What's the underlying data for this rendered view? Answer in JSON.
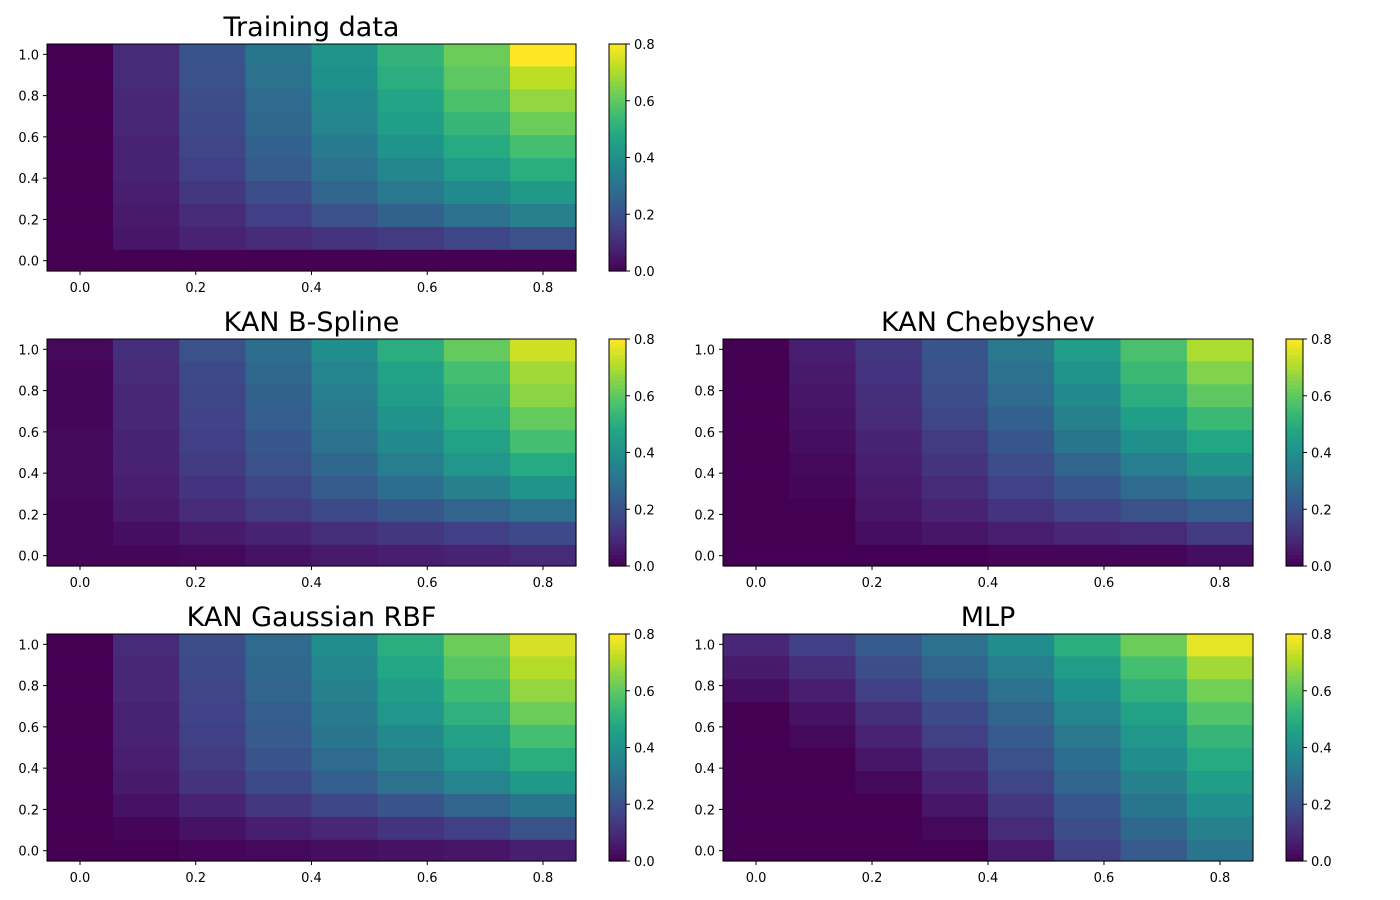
{
  "figure": {
    "title": ""
  },
  "chart_data": [
    {
      "type": "heatmap",
      "title": "Training data",
      "x_ticks": [
        "0.0",
        "0.2",
        "0.4",
        "0.6",
        "0.8"
      ],
      "y_ticks": [
        "0.0",
        "0.2",
        "0.4",
        "0.6",
        "0.8",
        "1.0"
      ],
      "x_tick_values": [
        0.0,
        0.2,
        0.4,
        0.6,
        0.8
      ],
      "y_tick_values": [
        0.0,
        0.2,
        0.4,
        0.6,
        0.8,
        1.0
      ],
      "xlim": [
        -0.057,
        0.857
      ],
      "ylim": [
        -0.05,
        1.05
      ],
      "x_centers": [
        0.0,
        0.114,
        0.229,
        0.343,
        0.457,
        0.571,
        0.686,
        0.8
      ],
      "y_centers": [
        0.0,
        0.111,
        0.222,
        0.333,
        0.444,
        0.556,
        0.667,
        0.778,
        0.889,
        1.0
      ],
      "values": [
        [
          0.0,
          0.0,
          0.0,
          0.0,
          0.0,
          0.0,
          0.0,
          0.0
        ],
        [
          0.0,
          0.05,
          0.08,
          0.1,
          0.12,
          0.14,
          0.17,
          0.2
        ],
        [
          0.0,
          0.06,
          0.1,
          0.15,
          0.2,
          0.25,
          0.3,
          0.35
        ],
        [
          0.0,
          0.07,
          0.13,
          0.19,
          0.26,
          0.32,
          0.38,
          0.43
        ],
        [
          0.0,
          0.08,
          0.15,
          0.23,
          0.3,
          0.37,
          0.44,
          0.5
        ],
        [
          0.0,
          0.08,
          0.17,
          0.25,
          0.33,
          0.41,
          0.49,
          0.56
        ],
        [
          0.0,
          0.09,
          0.18,
          0.27,
          0.36,
          0.45,
          0.53,
          0.62
        ],
        [
          0.0,
          0.09,
          0.19,
          0.28,
          0.38,
          0.47,
          0.57,
          0.67
        ],
        [
          0.0,
          0.1,
          0.2,
          0.3,
          0.4,
          0.5,
          0.6,
          0.72
        ],
        [
          0.0,
          0.1,
          0.21,
          0.31,
          0.41,
          0.52,
          0.62,
          0.8
        ]
      ],
      "colorbar": {
        "min": 0.0,
        "max": 0.8,
        "ticks": [
          "0.0",
          "0.2",
          "0.4",
          "0.6",
          "0.8"
        ]
      }
    },
    {
      "type": "heatmap",
      "title": "KAN B-Spline",
      "x_ticks": [
        "0.0",
        "0.2",
        "0.4",
        "0.6",
        "0.8"
      ],
      "y_ticks": [
        "0.0",
        "0.2",
        "0.4",
        "0.6",
        "0.8",
        "1.0"
      ],
      "x_tick_values": [
        0.0,
        0.2,
        0.4,
        0.6,
        0.8
      ],
      "y_tick_values": [
        0.0,
        0.2,
        0.4,
        0.6,
        0.8,
        1.0
      ],
      "xlim": [
        -0.057,
        0.857
      ],
      "ylim": [
        -0.05,
        1.05
      ],
      "x_centers": [
        0.0,
        0.114,
        0.229,
        0.343,
        0.457,
        0.571,
        0.686,
        0.8
      ],
      "y_centers": [
        0.0,
        0.111,
        0.222,
        0.333,
        0.444,
        0.556,
        0.667,
        0.778,
        0.889,
        1.0
      ],
      "values": [
        [
          0.01,
          0.01,
          0.02,
          0.04,
          0.06,
          0.07,
          0.08,
          0.1
        ],
        [
          0.01,
          0.03,
          0.06,
          0.08,
          0.11,
          0.13,
          0.15,
          0.18
        ],
        [
          0.01,
          0.06,
          0.1,
          0.14,
          0.18,
          0.22,
          0.26,
          0.3
        ],
        [
          0.02,
          0.07,
          0.12,
          0.17,
          0.23,
          0.29,
          0.35,
          0.41
        ],
        [
          0.02,
          0.08,
          0.14,
          0.2,
          0.27,
          0.34,
          0.42,
          0.49
        ],
        [
          0.02,
          0.08,
          0.15,
          0.22,
          0.3,
          0.38,
          0.46,
          0.56
        ],
        [
          0.01,
          0.09,
          0.16,
          0.24,
          0.32,
          0.41,
          0.5,
          0.61
        ],
        [
          0.01,
          0.09,
          0.17,
          0.25,
          0.34,
          0.44,
          0.53,
          0.66
        ],
        [
          0.01,
          0.1,
          0.18,
          0.27,
          0.36,
          0.46,
          0.56,
          0.69
        ],
        [
          0.02,
          0.11,
          0.2,
          0.29,
          0.39,
          0.5,
          0.61,
          0.74
        ]
      ],
      "colorbar": {
        "min": 0.0,
        "max": 0.8,
        "ticks": [
          "0.0",
          "0.2",
          "0.4",
          "0.6",
          "0.8"
        ]
      }
    },
    {
      "type": "heatmap",
      "title": "KAN Chebyshev",
      "x_ticks": [
        "0.0",
        "0.2",
        "0.4",
        "0.6",
        "0.8"
      ],
      "y_ticks": [
        "0.0",
        "0.2",
        "0.4",
        "0.6",
        "0.8",
        "1.0"
      ],
      "x_tick_values": [
        0.0,
        0.2,
        0.4,
        0.6,
        0.8
      ],
      "y_tick_values": [
        0.0,
        0.2,
        0.4,
        0.6,
        0.8,
        1.0
      ],
      "xlim": [
        -0.057,
        0.857
      ],
      "ylim": [
        -0.05,
        1.05
      ],
      "x_centers": [
        0.0,
        0.114,
        0.229,
        0.343,
        0.457,
        0.571,
        0.686,
        0.8
      ],
      "y_centers": [
        0.0,
        0.111,
        0.222,
        0.333,
        0.444,
        0.556,
        0.667,
        0.778,
        0.889,
        1.0
      ],
      "values": [
        [
          0.0,
          0.0,
          0.0,
          0.0,
          0.01,
          0.01,
          0.01,
          0.03
        ],
        [
          0.0,
          0.0,
          0.03,
          0.05,
          0.07,
          0.09,
          0.1,
          0.14
        ],
        [
          0.0,
          0.0,
          0.05,
          0.08,
          0.12,
          0.16,
          0.2,
          0.24
        ],
        [
          0.0,
          0.01,
          0.06,
          0.1,
          0.16,
          0.22,
          0.28,
          0.33
        ],
        [
          0.0,
          0.02,
          0.07,
          0.12,
          0.19,
          0.26,
          0.34,
          0.41
        ],
        [
          0.0,
          0.03,
          0.08,
          0.14,
          0.22,
          0.31,
          0.4,
          0.48
        ],
        [
          0.0,
          0.04,
          0.1,
          0.17,
          0.25,
          0.35,
          0.45,
          0.54
        ],
        [
          0.0,
          0.05,
          0.11,
          0.19,
          0.28,
          0.38,
          0.5,
          0.6
        ],
        [
          0.0,
          0.06,
          0.12,
          0.2,
          0.3,
          0.41,
          0.54,
          0.65
        ],
        [
          0.0,
          0.07,
          0.13,
          0.21,
          0.32,
          0.44,
          0.57,
          0.7
        ]
      ],
      "colorbar": {
        "min": 0.0,
        "max": 0.8,
        "ticks": [
          "0.0",
          "0.2",
          "0.4",
          "0.6",
          "0.8"
        ]
      }
    },
    {
      "type": "heatmap",
      "title": "KAN Gaussian RBF",
      "x_ticks": [
        "0.0",
        "0.2",
        "0.4",
        "0.6",
        "0.8"
      ],
      "y_ticks": [
        "0.0",
        "0.2",
        "0.4",
        "0.6",
        "0.8",
        "1.0"
      ],
      "x_tick_values": [
        0.0,
        0.2,
        0.4,
        0.6,
        0.8
      ],
      "y_tick_values": [
        0.0,
        0.2,
        0.4,
        0.6,
        0.8,
        1.0
      ],
      "xlim": [
        -0.057,
        0.857
      ],
      "ylim": [
        -0.05,
        1.05
      ],
      "x_centers": [
        0.0,
        0.114,
        0.229,
        0.343,
        0.457,
        0.571,
        0.686,
        0.8
      ],
      "y_centers": [
        0.0,
        0.111,
        0.222,
        0.333,
        0.444,
        0.556,
        0.667,
        0.778,
        0.889,
        1.0
      ],
      "values": [
        [
          0.0,
          0.0,
          0.01,
          0.02,
          0.03,
          0.04,
          0.05,
          0.07
        ],
        [
          0.0,
          0.01,
          0.04,
          0.07,
          0.09,
          0.12,
          0.15,
          0.2
        ],
        [
          0.0,
          0.04,
          0.08,
          0.13,
          0.17,
          0.21,
          0.26,
          0.31
        ],
        [
          0.0,
          0.06,
          0.12,
          0.18,
          0.24,
          0.3,
          0.36,
          0.43
        ],
        [
          0.0,
          0.07,
          0.14,
          0.21,
          0.28,
          0.35,
          0.42,
          0.5
        ],
        [
          0.0,
          0.08,
          0.15,
          0.23,
          0.31,
          0.38,
          0.46,
          0.56
        ],
        [
          0.0,
          0.08,
          0.16,
          0.24,
          0.33,
          0.42,
          0.51,
          0.62
        ],
        [
          0.0,
          0.09,
          0.17,
          0.26,
          0.35,
          0.45,
          0.55,
          0.67
        ],
        [
          0.0,
          0.09,
          0.18,
          0.27,
          0.37,
          0.48,
          0.59,
          0.71
        ],
        [
          0.0,
          0.1,
          0.19,
          0.28,
          0.39,
          0.5,
          0.62,
          0.75
        ]
      ],
      "colorbar": {
        "min": 0.0,
        "max": 0.8,
        "ticks": [
          "0.0",
          "0.2",
          "0.4",
          "0.6",
          "0.8"
        ]
      }
    },
    {
      "type": "heatmap",
      "title": "MLP",
      "x_ticks": [
        "0.0",
        "0.2",
        "0.4",
        "0.6",
        "0.8"
      ],
      "y_ticks": [
        "0.0",
        "0.2",
        "0.4",
        "0.6",
        "0.8",
        "1.0"
      ],
      "x_tick_values": [
        0.0,
        0.2,
        0.4,
        0.6,
        0.8
      ],
      "y_tick_values": [
        0.0,
        0.2,
        0.4,
        0.6,
        0.8,
        1.0
      ],
      "xlim": [
        -0.057,
        0.857
      ],
      "ylim": [
        -0.05,
        1.05
      ],
      "x_centers": [
        0.0,
        0.114,
        0.229,
        0.343,
        0.457,
        0.571,
        0.686,
        0.8
      ],
      "y_centers": [
        0.0,
        0.111,
        0.222,
        0.333,
        0.444,
        0.556,
        0.667,
        0.778,
        0.889,
        1.0
      ],
      "values": [
        [
          0.0,
          0.0,
          0.0,
          0.0,
          0.06,
          0.15,
          0.23,
          0.31
        ],
        [
          0.0,
          0.0,
          0.0,
          0.02,
          0.1,
          0.19,
          0.27,
          0.35
        ],
        [
          0.0,
          0.0,
          0.0,
          0.05,
          0.13,
          0.22,
          0.31,
          0.4
        ],
        [
          0.0,
          0.0,
          0.02,
          0.08,
          0.17,
          0.26,
          0.35,
          0.45
        ],
        [
          0.0,
          0.0,
          0.05,
          0.11,
          0.2,
          0.29,
          0.39,
          0.49
        ],
        [
          0.0,
          0.02,
          0.08,
          0.15,
          0.23,
          0.32,
          0.42,
          0.53
        ],
        [
          0.0,
          0.04,
          0.11,
          0.18,
          0.26,
          0.36,
          0.46,
          0.58
        ],
        [
          0.03,
          0.07,
          0.15,
          0.22,
          0.3,
          0.4,
          0.51,
          0.63
        ],
        [
          0.06,
          0.11,
          0.19,
          0.26,
          0.34,
          0.44,
          0.56,
          0.69
        ],
        [
          0.09,
          0.15,
          0.23,
          0.3,
          0.39,
          0.5,
          0.62,
          0.77
        ]
      ],
      "colorbar": {
        "min": 0.0,
        "max": 0.8,
        "ticks": [
          "0.0",
          "0.2",
          "0.4",
          "0.6",
          "0.8"
        ]
      }
    }
  ]
}
